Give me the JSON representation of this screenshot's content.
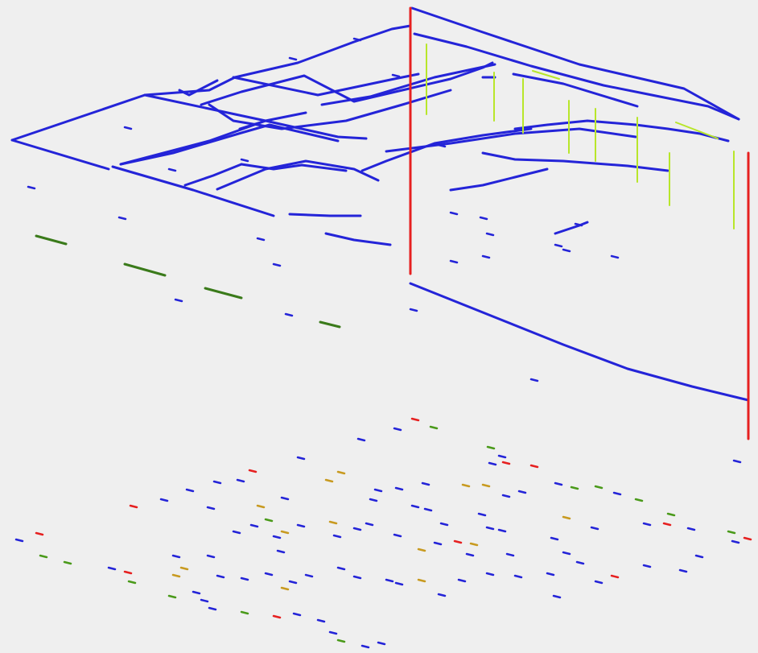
{
  "view": {
    "kind": "isometric wireframe",
    "background": "#efefef"
  },
  "colors": {
    "pipe": "#2424d8",
    "riser": "#e62020",
    "branch_drop": "#b8e62a",
    "fixture": "#3a7a1a",
    "marker_blue": "#2424d8",
    "marker_red": "#e62020",
    "marker_green": "#4a9a1a",
    "marker_orange": "#c89a20"
  },
  "legend": [],
  "labels": []
}
